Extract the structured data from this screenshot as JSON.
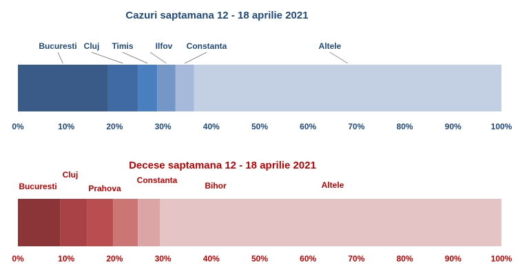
{
  "chart_data": [
    {
      "type": "bar",
      "orientation": "horizontal-stacked-100",
      "title": "Cazuri saptamana 12 - 18 aprilie 2021",
      "categories": [
        "Bucuresti",
        "Cluj",
        "Timis",
        "Ilfov",
        "Constanta",
        "Altele"
      ],
      "values": [
        18.6,
        6.2,
        4.0,
        3.8,
        3.8,
        63.6
      ],
      "colors": [
        "#3a5a87",
        "#3f6aa3",
        "#4a7fbf",
        "#7497c8",
        "#a6b9da",
        "#c3cfe3"
      ],
      "label_color": "#1f497d",
      "xticks": [
        "0%",
        "10%",
        "20%",
        "30%",
        "40%",
        "50%",
        "60%",
        "70%",
        "80%",
        "90%",
        "100%"
      ],
      "xlim": [
        0,
        100
      ],
      "grid": false
    },
    {
      "type": "bar",
      "orientation": "horizontal-stacked-100",
      "title": "Decese saptamana 12 - 18 aprilie 2021",
      "categories": [
        "Bucuresti",
        "Cluj",
        "Prahova",
        "Constanta",
        "Bihor",
        "Altele"
      ],
      "values": [
        8.7,
        5.6,
        5.4,
        5.1,
        4.6,
        70.6
      ],
      "colors": [
        "#8b3538",
        "#a84246",
        "#ba4d4f",
        "#cc7575",
        "#dba5a5",
        "#e5c4c5"
      ],
      "label_color": "#c00000",
      "xticks": [
        "0%",
        "10%",
        "20%",
        "30%",
        "40%",
        "50%",
        "60%",
        "70%",
        "80%",
        "90%",
        "100%"
      ],
      "xlim": [
        0,
        100
      ],
      "grid": false
    }
  ]
}
